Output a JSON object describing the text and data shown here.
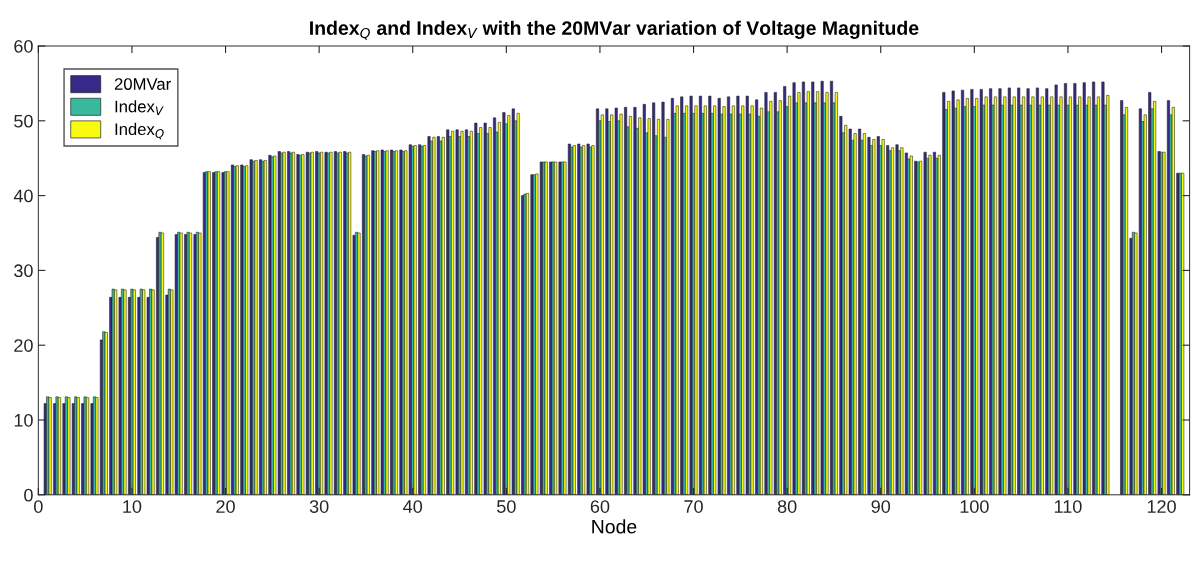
{
  "chart_data": {
    "type": "bar",
    "title": "Index$_{Q}$ and Index$_{V}$ with the 20MVar variation of Voltage Magnitude",
    "xlabel": "Node",
    "x": [
      1,
      2,
      3,
      4,
      5,
      6,
      7,
      8,
      9,
      10,
      11,
      12,
      13,
      14,
      15,
      16,
      17,
      18,
      19,
      20,
      21,
      22,
      23,
      24,
      25,
      26,
      27,
      28,
      29,
      30,
      31,
      32,
      33,
      34,
      35,
      36,
      37,
      38,
      39,
      40,
      41,
      42,
      43,
      44,
      45,
      46,
      47,
      48,
      49,
      50,
      51,
      52,
      53,
      54,
      55,
      56,
      57,
      58,
      59,
      60,
      61,
      62,
      63,
      64,
      65,
      66,
      67,
      68,
      69,
      70,
      71,
      72,
      73,
      74,
      75,
      76,
      77,
      78,
      79,
      80,
      81,
      82,
      83,
      84,
      85,
      86,
      87,
      88,
      89,
      90,
      91,
      92,
      93,
      94,
      95,
      96,
      97,
      98,
      99,
      100,
      101,
      102,
      103,
      104,
      105,
      106,
      107,
      108,
      109,
      110,
      111,
      112,
      113,
      114,
      115,
      116,
      117,
      118,
      119,
      120,
      121,
      122
    ],
    "series": [
      {
        "name": "20MVar",
        "color": "#352a87",
        "values": [
          12.2,
          12.2,
          12.2,
          12.2,
          12.2,
          12.2,
          20.7,
          26.4,
          26.4,
          26.4,
          26.4,
          26.4,
          34.4,
          26.7,
          34.8,
          34.8,
          34.8,
          43.1,
          43.1,
          43.1,
          44.1,
          44.1,
          44.8,
          44.8,
          45.4,
          45.9,
          45.9,
          45.5,
          45.8,
          45.9,
          45.8,
          45.9,
          45.9,
          34.7,
          45.5,
          46.0,
          46.1,
          46.1,
          46.1,
          46.8,
          46.8,
          47.9,
          47.9,
          48.8,
          48.8,
          48.8,
          49.7,
          49.7,
          50.4,
          51.1,
          51.6,
          40.0,
          42.8,
          44.5,
          44.5,
          44.5,
          46.9,
          46.9,
          46.9,
          51.6,
          51.6,
          51.7,
          51.8,
          51.8,
          52.2,
          52.4,
          52.5,
          53.0,
          53.2,
          53.3,
          53.3,
          53.3,
          53.0,
          53.2,
          53.3,
          53.3,
          52.8,
          53.8,
          53.8,
          54.6,
          55.1,
          55.2,
          55.2,
          55.3,
          55.3,
          50.6,
          48.9,
          48.9,
          47.8,
          47.9,
          46.7,
          46.8,
          45.7,
          44.6,
          45.8,
          45.8,
          53.8,
          54.0,
          54.1,
          54.2,
          54.2,
          54.3,
          54.3,
          54.4,
          54.4,
          54.3,
          54.4,
          54.3,
          54.8,
          55.0,
          55.0,
          55.1,
          55.2,
          55.2,
          null,
          52.7,
          34.3,
          51.6,
          53.8,
          45.9,
          52.7,
          43.0
        ]
      },
      {
        "name": "Index$_{V}$",
        "color": "#38b99e",
        "values": [
          13.1,
          13.1,
          13.1,
          13.1,
          13.1,
          13.1,
          21.8,
          27.5,
          27.5,
          27.5,
          27.5,
          27.5,
          35.1,
          27.5,
          35.1,
          35.1,
          35.1,
          43.2,
          43.2,
          43.2,
          43.9,
          43.9,
          44.6,
          44.6,
          45.2,
          45.7,
          45.7,
          45.4,
          45.7,
          45.7,
          45.7,
          45.7,
          45.7,
          35.1,
          45.3,
          45.9,
          45.9,
          45.9,
          45.9,
          46.6,
          46.6,
          47.3,
          47.3,
          47.9,
          47.9,
          47.9,
          48.3,
          48.3,
          48.5,
          49.6,
          50.0,
          40.2,
          42.8,
          44.5,
          44.5,
          44.5,
          46.5,
          46.5,
          46.5,
          50.0,
          49.9,
          50.0,
          49.2,
          49.0,
          48.4,
          48.0,
          47.8,
          51.0,
          51.0,
          51.0,
          51.0,
          51.0,
          50.9,
          50.9,
          50.9,
          50.9,
          50.6,
          51.2,
          51.2,
          51.9,
          52.4,
          52.4,
          52.4,
          52.4,
          52.4,
          48.4,
          47.4,
          47.4,
          46.7,
          46.7,
          46.0,
          46.0,
          44.9,
          44.5,
          45.0,
          45.0,
          51.5,
          51.7,
          51.9,
          51.9,
          52.1,
          52.1,
          52.1,
          52.1,
          52.1,
          52.1,
          52.1,
          52.1,
          52.1,
          52.1,
          52.1,
          52.1,
          52.1,
          52.1,
          null,
          50.8,
          35.1,
          49.9,
          51.6,
          45.8,
          50.8,
          43.0
        ]
      },
      {
        "name": "Index$_{Q}$",
        "color": "#f9fb0e",
        "values": [
          13.0,
          13.0,
          13.0,
          13.0,
          13.0,
          13.0,
          21.7,
          27.4,
          27.4,
          27.4,
          27.4,
          27.4,
          35.0,
          27.4,
          35.0,
          35.0,
          35.0,
          43.2,
          43.2,
          43.2,
          44.0,
          44.0,
          44.7,
          44.7,
          45.3,
          45.8,
          45.8,
          45.5,
          45.8,
          45.8,
          45.8,
          45.8,
          45.8,
          35.0,
          45.4,
          46.0,
          46.0,
          46.0,
          46.0,
          46.7,
          46.7,
          47.8,
          47.8,
          48.6,
          48.6,
          48.6,
          49.1,
          49.1,
          49.8,
          50.7,
          51.0,
          40.3,
          42.9,
          44.5,
          44.5,
          44.5,
          46.7,
          46.7,
          46.7,
          50.8,
          50.8,
          50.9,
          50.6,
          50.4,
          50.3,
          50.2,
          50.2,
          52.0,
          52.0,
          52.0,
          52.0,
          52.0,
          51.9,
          52.0,
          52.0,
          52.0,
          51.7,
          52.6,
          52.7,
          53.3,
          53.8,
          53.9,
          53.9,
          53.8,
          53.8,
          49.4,
          48.3,
          48.3,
          47.5,
          47.5,
          46.4,
          46.4,
          45.3,
          44.6,
          45.4,
          45.4,
          52.6,
          52.8,
          53.0,
          53.0,
          53.2,
          53.2,
          53.2,
          53.2,
          53.2,
          53.2,
          53.2,
          53.2,
          53.2,
          53.2,
          53.2,
          53.2,
          53.2,
          53.4,
          null,
          51.8,
          35.0,
          50.8,
          52.6,
          45.8,
          51.8,
          43.0
        ]
      }
    ],
    "xlim": [
      0,
      123
    ],
    "xticks": [
      0,
      10,
      20,
      30,
      40,
      50,
      60,
      70,
      80,
      90,
      100,
      110,
      120
    ],
    "ylim": [
      0,
      60
    ],
    "yticks": [
      0,
      10,
      20,
      30,
      40,
      50,
      60
    ],
    "legend": "top left"
  }
}
